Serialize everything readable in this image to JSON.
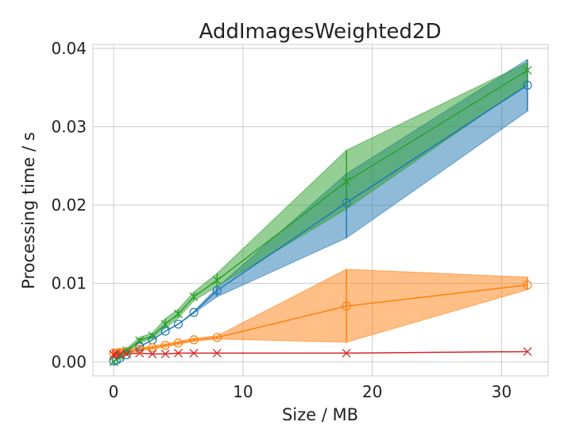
{
  "chart_data": {
    "type": "line",
    "title": "AddImagesWeighted2D",
    "xlabel": "Size / MB",
    "ylabel": "Processing time / s",
    "xlim": [
      -1.6,
      33.6
    ],
    "ylim": [
      -0.0018,
      0.0405
    ],
    "xticks": [
      0,
      10,
      20,
      30
    ],
    "xtick_labels": [
      "0",
      "10",
      "20",
      "30"
    ],
    "yticks": [
      0,
      0.01,
      0.02,
      0.03,
      0.04
    ],
    "ytick_labels": [
      "0.00",
      "0.01",
      "0.02",
      "0.03",
      "0.04"
    ],
    "grid": true,
    "legend": "none",
    "series": [
      {
        "color": "#1f77b4",
        "marker": "circle",
        "x": [
          0,
          0.2,
          0.5,
          1,
          2,
          3,
          4,
          5,
          6.2,
          8,
          18,
          32
        ],
        "y": [
          0.0001,
          0.0002,
          0.0005,
          0.0009,
          0.0019,
          0.0028,
          0.0039,
          0.0048,
          0.0063,
          0.0091,
          0.0203,
          0.0353
        ],
        "lower": [
          0.0001,
          0.0002,
          0.0005,
          0.0009,
          0.0019,
          0.0028,
          0.0039,
          0.0048,
          0.0062,
          0.0083,
          0.0158,
          0.032
        ],
        "upper": [
          0.0001,
          0.0002,
          0.0005,
          0.0009,
          0.0019,
          0.0028,
          0.0039,
          0.0048,
          0.0064,
          0.0095,
          0.024,
          0.0386
        ]
      },
      {
        "color": "#ff7f0e",
        "marker": "circle",
        "x": [
          0,
          0.2,
          0.5,
          1,
          2,
          3,
          4,
          5,
          6.2,
          8,
          18,
          32
        ],
        "y": [
          0.0011,
          0.0011,
          0.0012,
          0.0013,
          0.0016,
          0.0018,
          0.0021,
          0.0024,
          0.0028,
          0.0031,
          0.0071,
          0.0098
        ],
        "lower": [
          0.0008,
          0.0008,
          0.0009,
          0.001,
          0.0014,
          0.0016,
          0.0019,
          0.0022,
          0.0026,
          0.0029,
          0.0025,
          0.0092
        ],
        "upper": [
          0.0016,
          0.0015,
          0.0016,
          0.0017,
          0.0018,
          0.002,
          0.0023,
          0.0026,
          0.003,
          0.0033,
          0.0118,
          0.0108
        ]
      },
      {
        "color": "#2ca02c",
        "marker": "x",
        "x": [
          0,
          0.2,
          0.5,
          1,
          2,
          3,
          4,
          5,
          6.2,
          8,
          18,
          32
        ],
        "y": [
          0.0,
          0.0003,
          0.0007,
          0.0014,
          0.0027,
          0.0033,
          0.0048,
          0.0061,
          0.0083,
          0.0104,
          0.023,
          0.0372
        ],
        "lower": [
          0.0,
          0.0002,
          0.0006,
          0.0012,
          0.0024,
          0.003,
          0.0043,
          0.0056,
          0.0078,
          0.0096,
          0.0195,
          0.0355
        ],
        "upper": [
          0.0001,
          0.0004,
          0.0009,
          0.0017,
          0.0031,
          0.0037,
          0.0055,
          0.0067,
          0.0089,
          0.0113,
          0.027,
          0.0382
        ]
      },
      {
        "color": "#d62728",
        "marker": "x",
        "x": [
          0,
          0.2,
          0.5,
          1,
          2,
          3,
          4,
          5,
          6.2,
          8,
          18,
          32
        ],
        "y": [
          0.0009,
          0.001,
          0.001,
          0.001,
          0.0011,
          0.001,
          0.001,
          0.0011,
          0.0011,
          0.0011,
          0.0011,
          0.0013
        ],
        "lower": [
          0.0009,
          0.001,
          0.001,
          0.001,
          0.0011,
          0.001,
          0.001,
          0.0011,
          0.0011,
          0.0011,
          0.0011,
          0.0013
        ],
        "upper": [
          0.0009,
          0.001,
          0.001,
          0.001,
          0.0011,
          0.001,
          0.001,
          0.0011,
          0.0011,
          0.0011,
          0.0011,
          0.0013
        ]
      }
    ]
  }
}
